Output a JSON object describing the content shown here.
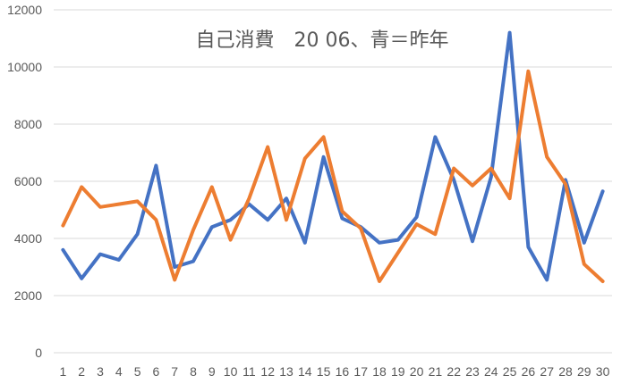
{
  "chart_data": {
    "type": "line",
    "title": "自己消費　20 06、青＝昨年",
    "xlabel": "",
    "ylabel": "",
    "ylim": [
      0,
      12000
    ],
    "yticks": [
      0,
      2000,
      4000,
      6000,
      8000,
      10000,
      12000
    ],
    "grid": true,
    "legend": "none",
    "categories": [
      "1",
      "2",
      "3",
      "4",
      "5",
      "6",
      "7",
      "8",
      "9",
      "10",
      "11",
      "12",
      "13",
      "14",
      "15",
      "16",
      "17",
      "18",
      "19",
      "20",
      "21",
      "22",
      "23",
      "24",
      "25",
      "26",
      "27",
      "28",
      "29",
      "30"
    ],
    "series": [
      {
        "color": "#4472c4",
        "values": [
          3600,
          2600,
          3450,
          3250,
          4150,
          6550,
          3000,
          3200,
          4400,
          4650,
          5200,
          4650,
          5400,
          3850,
          6850,
          4700,
          4400,
          3850,
          3950,
          4750,
          7550,
          6050,
          3900,
          6150,
          11200,
          3700,
          2550,
          6050,
          3850,
          5650
        ]
      },
      {
        "color": "#ed7d31",
        "values": [
          4450,
          5800,
          5100,
          5200,
          5300,
          4650,
          2550,
          4300,
          5800,
          3950,
          5400,
          7200,
          4650,
          6800,
          7550,
          4950,
          4350,
          2500,
          3500,
          4500,
          4150,
          6450,
          5850,
          6450,
          5400,
          9850,
          6850,
          5900,
          3100,
          2500
        ]
      }
    ]
  }
}
